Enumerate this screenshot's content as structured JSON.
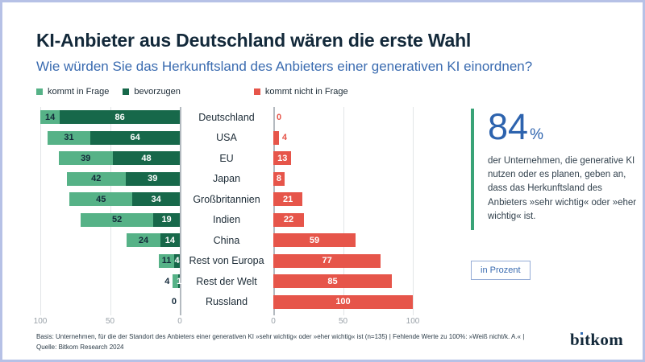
{
  "header": {
    "title": "KI-Anbieter aus Deutschland wären die erste Wahl",
    "subtitle": "Wie würden Sie das Herkunftsland des Anbieters einer generativen KI einordnen?"
  },
  "legend": {
    "items": [
      {
        "label": "kommt in Frage",
        "color_key": "light-green"
      },
      {
        "label": "bevorzugen",
        "color_key": "dark-green"
      },
      {
        "label": "kommt nicht in Frage",
        "color_key": "red"
      }
    ]
  },
  "chart_data": {
    "type": "bar",
    "subtype": "diverging-stacked-horizontal",
    "unit": "percent",
    "categories": [
      "Deutschland",
      "USA",
      "EU",
      "Japan",
      "Großbritannien",
      "Indien",
      "China",
      "Rest von Europa",
      "Rest der Welt",
      "Russland"
    ],
    "series": [
      {
        "name": "kommt in Frage",
        "side": "left",
        "values": [
          14,
          31,
          39,
          42,
          45,
          52,
          24,
          11,
          4,
          0
        ]
      },
      {
        "name": "bevorzugen",
        "side": "left",
        "values": [
          86,
          64,
          48,
          39,
          34,
          19,
          14,
          4,
          1,
          0
        ]
      },
      {
        "name": "kommt nicht in Frage",
        "side": "right",
        "values": [
          0,
          4,
          13,
          8,
          21,
          22,
          59,
          77,
          85,
          100
        ]
      }
    ],
    "axis": {
      "left_ticks": [
        "100",
        "50",
        "0"
      ],
      "right_ticks": [
        "0",
        "50",
        "100"
      ],
      "max": 100,
      "grid": true
    },
    "legend_position": "top"
  },
  "callout": {
    "stat_value": "84",
    "stat_unit": "%",
    "text": "der Unternehmen, die generative KI nutzen oder es planen, geben an, dass das Herkunftsland des Anbieters »sehr wichtig« oder »eher wichtig« ist."
  },
  "unit_badge": "in Prozent",
  "footer": {
    "line1": "Basis: Unternehmen, für die der Standort des Anbieters einer generativen KI »sehr wichtig« oder »eher wichtig« ist (n=135) | Fehlende Werte zu 100%: »Weiß nicht/k. A.« |",
    "line2": "Quelle: Bitkom Research 2024",
    "logo": "bitkom"
  },
  "colors": {
    "frame-border": "#b6c1e6",
    "title-navy": "#13293a",
    "blue": "#3a6bb0",
    "stat-blue": "#2d63ae",
    "light-green": "#56b287",
    "dark-green": "#17684a",
    "red": "#e6554a",
    "callout-green": "#39a377",
    "badge-border": "#94abd6",
    "grid": "#e2e5e8",
    "axis": "#b4bac0",
    "tick": "#99a1a8",
    "cat-text": "#1c2b36",
    "body-text": "#33424e",
    "footer-text": "#2b3b47",
    "logo-dot": "#2f6ab2"
  }
}
